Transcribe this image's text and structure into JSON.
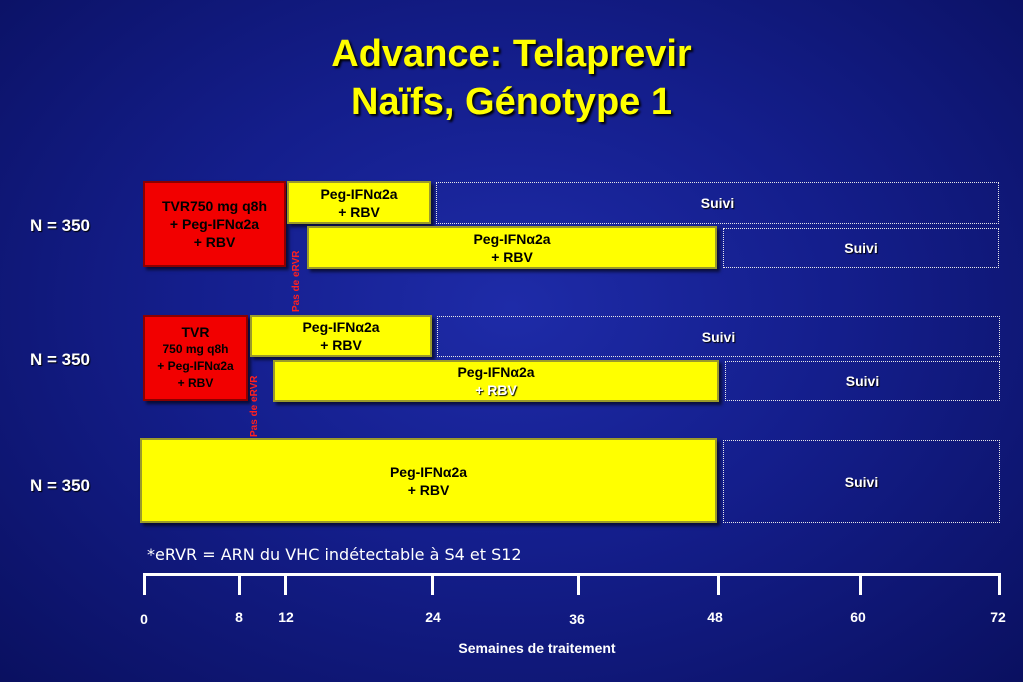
{
  "title": {
    "line1": "Advance: Telaprevir",
    "line2": "Naïfs, Génotype 1"
  },
  "arms": [
    {
      "n_label": "N = 350",
      "tvr_box": [
        "TVR750 mg q8h",
        "+ Peg-IFNα2a",
        "+ RBV"
      ],
      "eRVR_label": "Pas de  eRVR",
      "top_row": {
        "treatment": [
          "Peg-IFNα2a",
          "+ RBV"
        ],
        "followup": "Suivi"
      },
      "bottom_row": {
        "treatment": [
          "Peg-IFNα2a",
          "+ RBV"
        ],
        "followup": "Suivi"
      }
    },
    {
      "n_label": "N = 350",
      "tvr_box": [
        "TVR",
        "750 mg q8h",
        "+ Peg-IFNα2a",
        "+ RBV"
      ],
      "eRVR_label": "Pas de eRVR",
      "top_row": {
        "treatment": [
          "Peg-IFNα2a",
          "+ RBV"
        ],
        "followup": "Suivi"
      },
      "bottom_row": {
        "treatment": [
          "Peg-IFNα2a",
          "+ RBV"
        ],
        "followup": "Suivi"
      }
    },
    {
      "n_label": "N = 350",
      "row": {
        "treatment": [
          "Peg-IFNα2a",
          "+ RBV"
        ],
        "followup": "Suivi"
      }
    }
  ],
  "footnote": "*eRVR = ARN du VHC indétectable à S4 et S12",
  "axis": {
    "ticks": [
      "0",
      "8",
      "12",
      "24",
      "36",
      "48",
      "60",
      "72"
    ],
    "title": "Semaines de traitement"
  },
  "colors": {
    "tvr": "#f20000",
    "peg": "#ffff00",
    "title": "#ffff00",
    "eRVR_label": "#ff2020"
  }
}
